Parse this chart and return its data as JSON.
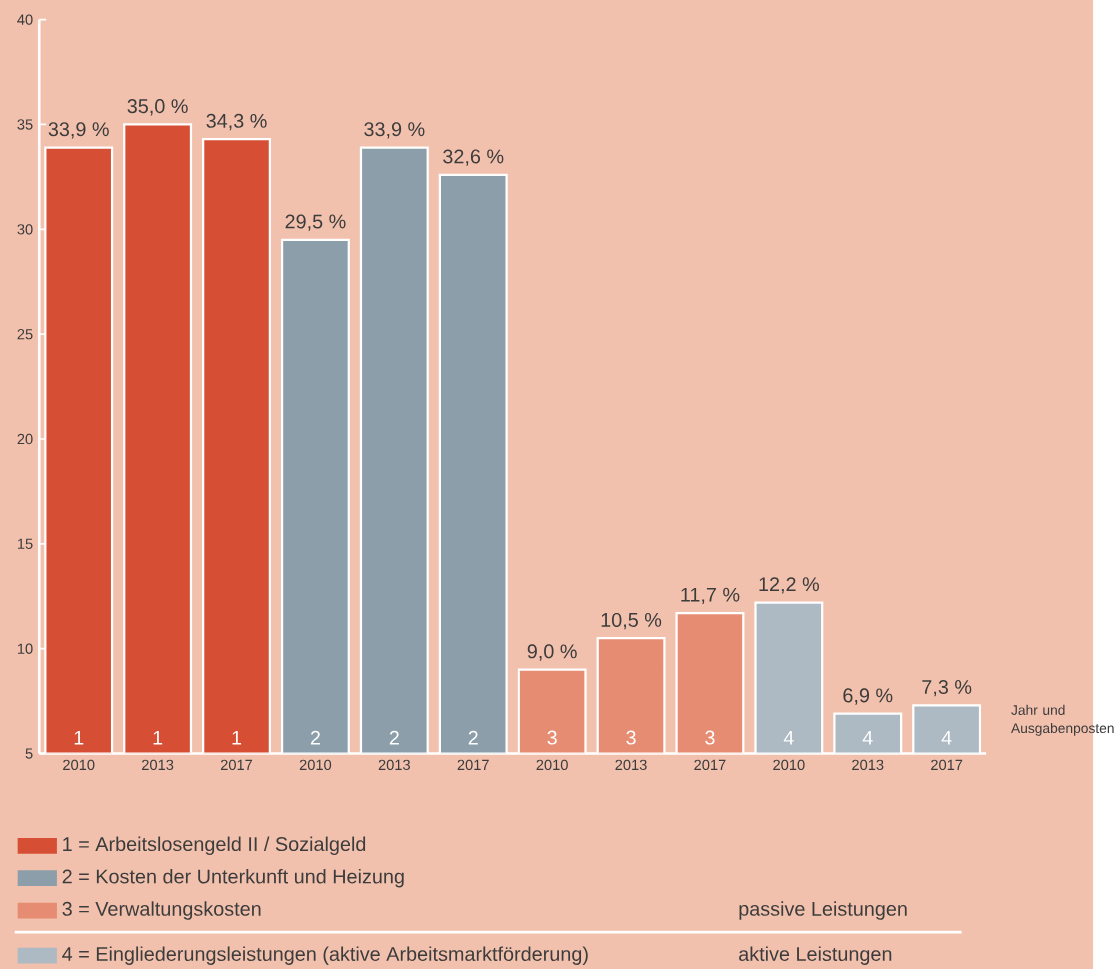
{
  "chart_data": {
    "type": "bar",
    "xlabel": "Jahr und Ausgabenposten",
    "categories": [
      "2010",
      "2013",
      "2017",
      "2010",
      "2013",
      "2017",
      "2010",
      "2013",
      "2017",
      "2010",
      "2013",
      "2017"
    ],
    "series": [
      {
        "name": "1 = Arbeitslosengeld II / Sozialgeld",
        "color": "#d64f35",
        "values": [
          33.9,
          35.0,
          34.3,
          null,
          null,
          null,
          null,
          null,
          null,
          null,
          null,
          null
        ],
        "value_labels": [
          "33,9 %",
          "35,0 %",
          "34,3 %",
          null,
          null,
          null,
          null,
          null,
          null,
          null,
          null,
          null
        ]
      },
      {
        "name": "2 = Kosten der Unterkunft und Heizung",
        "color": "#8b9eaa",
        "values": [
          null,
          null,
          null,
          29.5,
          33.9,
          32.6,
          null,
          null,
          null,
          null,
          null,
          null
        ],
        "value_labels": [
          null,
          null,
          null,
          "29,5 %",
          "33,9 %",
          "32,6 %",
          null,
          null,
          null,
          null,
          null,
          null
        ]
      },
      {
        "name": "3 = Verwaltungskosten",
        "color": "#e68c72",
        "values": [
          null,
          null,
          null,
          null,
          null,
          null,
          9.0,
          10.5,
          11.7,
          null,
          null,
          null
        ],
        "value_labels": [
          null,
          null,
          null,
          null,
          null,
          null,
          "9,0 %",
          "10,5 %",
          "11,7 %",
          null,
          null,
          null
        ]
      },
      {
        "name": "4 = Eingliederungsleistungen (aktive Arbeitsmarktförderung)",
        "color": "#adbac4",
        "values": [
          null,
          null,
          null,
          null,
          null,
          null,
          null,
          null,
          null,
          12.2,
          6.9,
          7.3
        ],
        "value_labels": [
          null,
          null,
          null,
          null,
          null,
          null,
          null,
          null,
          null,
          "12,2 %",
          "6,9 %",
          "7,3 %"
        ]
      }
    ],
    "annotations": [
      "1",
      "2",
      "3",
      "4",
      "passive Leistungen",
      "aktive Leistungen"
    ],
    "ylim": [
      5,
      40
    ],
    "yticks": [
      5,
      10,
      15,
      20,
      25,
      30,
      35,
      40
    ],
    "legend": "bottom"
  }
}
